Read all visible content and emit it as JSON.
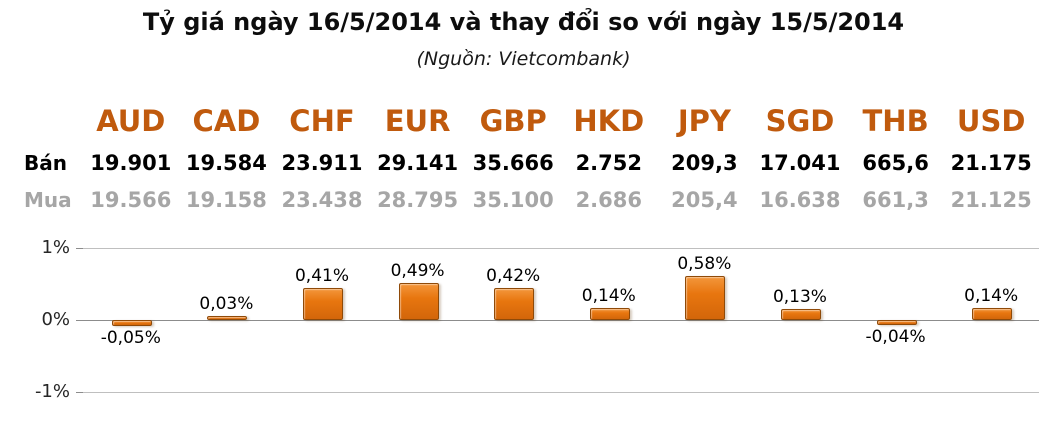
{
  "header": {
    "title": "Tỷ giá ngày 16/5/2014 và thay đổi so với ngày 15/5/2014",
    "subtitle": "(Nguồn: Vietcombank)"
  },
  "table": {
    "row_labels": {
      "sell": "Bán",
      "buy": "Mua"
    },
    "currencies": [
      "AUD",
      "CAD",
      "CHF",
      "EUR",
      "GBP",
      "HKD",
      "JPY",
      "SGD",
      "THB",
      "USD"
    ],
    "sell": [
      "19.901",
      "19.584",
      "23.911",
      "29.141",
      "35.666",
      "2.752",
      "209,3",
      "17.041",
      "665,6",
      "21.175"
    ],
    "buy": [
      "19.566",
      "19.158",
      "23.438",
      "28.795",
      "35.100",
      "2.686",
      "205,4",
      "16.638",
      "661,3",
      "21.125"
    ]
  },
  "chart_data": {
    "type": "bar",
    "title": "",
    "xlabel": "",
    "ylabel": "",
    "categories": [
      "AUD",
      "CAD",
      "CHF",
      "EUR",
      "GBP",
      "HKD",
      "JPY",
      "SGD",
      "THB",
      "USD"
    ],
    "values": [
      -0.05,
      0.03,
      0.41,
      0.49,
      0.42,
      0.14,
      0.58,
      0.13,
      -0.04,
      0.14
    ],
    "labels": [
      "-0,05%",
      "0,03%",
      "0,41%",
      "0,49%",
      "0,42%",
      "0,14%",
      "0,58%",
      "0,13%",
      "-0,04%",
      "0,14%"
    ],
    "ylim": [
      -1,
      1
    ],
    "ytick_labels": [
      "1%",
      "0%",
      "-1%"
    ],
    "grid": true,
    "legend": "none",
    "bar_color": "#E8760F",
    "bar_border": "#8F4A08"
  },
  "colors": {
    "currency_header": "#C05A0D",
    "sell_text": "#000000",
    "buy_text": "#A6A6A6",
    "gridline": "#BFBFBF",
    "zero_line": "#8C8C8C"
  }
}
